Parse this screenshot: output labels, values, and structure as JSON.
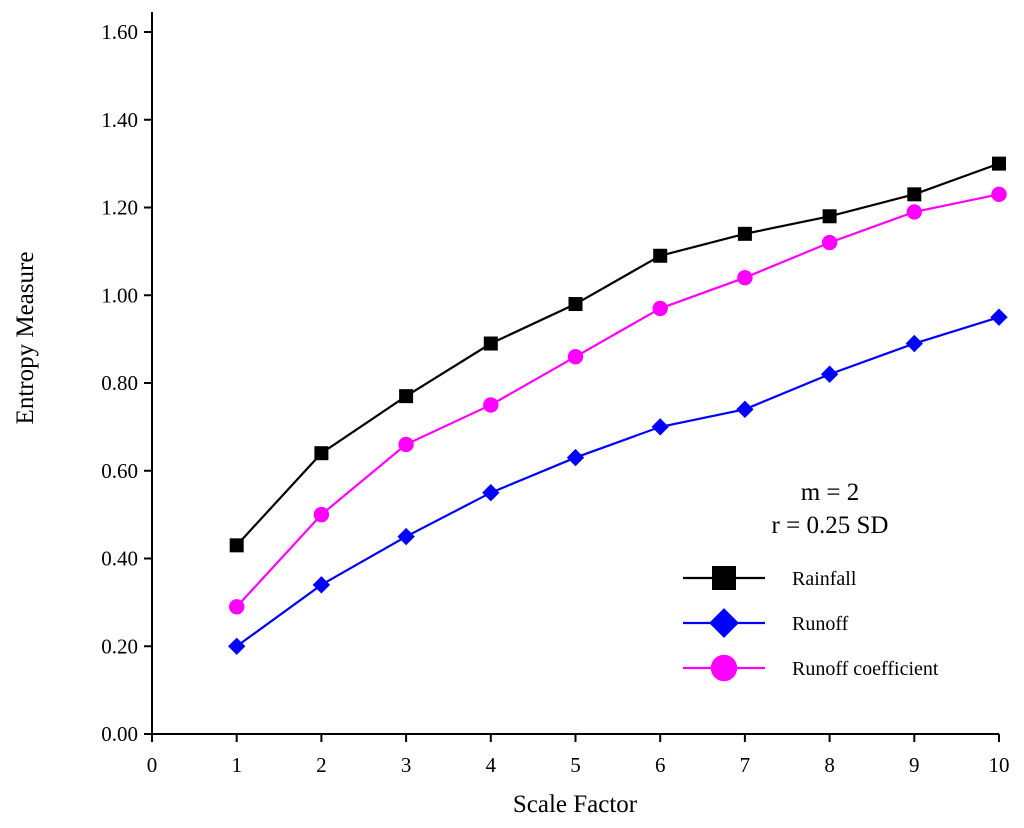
{
  "chart_data": {
    "type": "line",
    "title": "",
    "xlabel": "Scale Factor",
    "ylabel": "Entropy Measure",
    "xlim": [
      0,
      10
    ],
    "ylim": [
      0,
      1.6
    ],
    "xticks": [
      "0",
      "1",
      "2",
      "3",
      "4",
      "5",
      "6",
      "7",
      "8",
      "9",
      "10"
    ],
    "yticks": [
      "0.00",
      "0.20",
      "0.40",
      "0.60",
      "0.80",
      "1.00",
      "1.20",
      "1.40",
      "1.60"
    ],
    "x": [
      1,
      2,
      3,
      4,
      5,
      6,
      7,
      8,
      9,
      10
    ],
    "series": [
      {
        "name": "Rainfall",
        "color": "#000000",
        "marker": "square",
        "values": [
          0.43,
          0.64,
          0.77,
          0.89,
          0.98,
          1.09,
          1.14,
          1.18,
          1.23,
          1.3
        ]
      },
      {
        "name": "Runoff",
        "color": "#0000ff",
        "marker": "diamond",
        "values": [
          0.2,
          0.34,
          0.45,
          0.55,
          0.63,
          0.7,
          0.74,
          0.82,
          0.89,
          0.95
        ]
      },
      {
        "name": "Runoff coefficient",
        "color": "#ff00ff",
        "marker": "circle",
        "values": [
          0.29,
          0.5,
          0.66,
          0.75,
          0.86,
          0.97,
          1.04,
          1.12,
          1.19,
          1.23
        ]
      }
    ],
    "annotations": [
      "m = 2",
      "r = 0.25 SD"
    ],
    "legend_position": "bottom-right",
    "grid": false
  }
}
